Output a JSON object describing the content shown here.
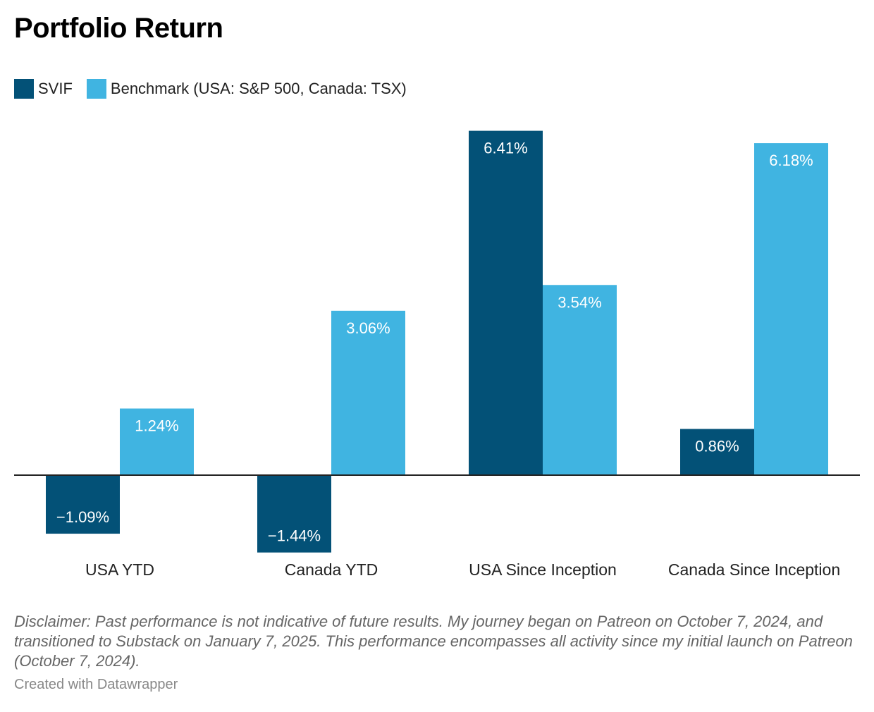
{
  "title": "Portfolio Return",
  "legend": [
    {
      "label": "SVIF",
      "color": "#035177"
    },
    {
      "label": "Benchmark (USA: S&P 500, Canada: TSX)",
      "color": "#40b4e1"
    }
  ],
  "chart_data": {
    "type": "bar",
    "title": "Portfolio Return",
    "xlabel": "",
    "ylabel": "",
    "grid": false,
    "categories": [
      "USA YTD",
      "Canada YTD",
      "USA Since Inception",
      "Canada Since Inception"
    ],
    "series": [
      {
        "name": "SVIF",
        "values": [
          -1.09,
          -1.44,
          6.41,
          0.86
        ],
        "labels": [
          "−1.09%",
          "−1.44%",
          "6.41%",
          "0.86%"
        ]
      },
      {
        "name": "Benchmark (USA: S&P 500, Canada: TSX)",
        "values": [
          1.24,
          3.06,
          3.54,
          6.18
        ],
        "labels": [
          "1.24%",
          "3.06%",
          "3.54%",
          "6.18%"
        ]
      }
    ],
    "ylim": [
      -1.44,
      6.41
    ]
  },
  "disclaimer": "Disclaimer: Past performance is not indicative of future results. My journey began on Patreon on October 7, 2024, and transitioned to Substack on January 7, 2025. This performance encompasses all activity since my initial launch on Patreon (October 7, 2024).",
  "credit": "Created with Datawrapper"
}
